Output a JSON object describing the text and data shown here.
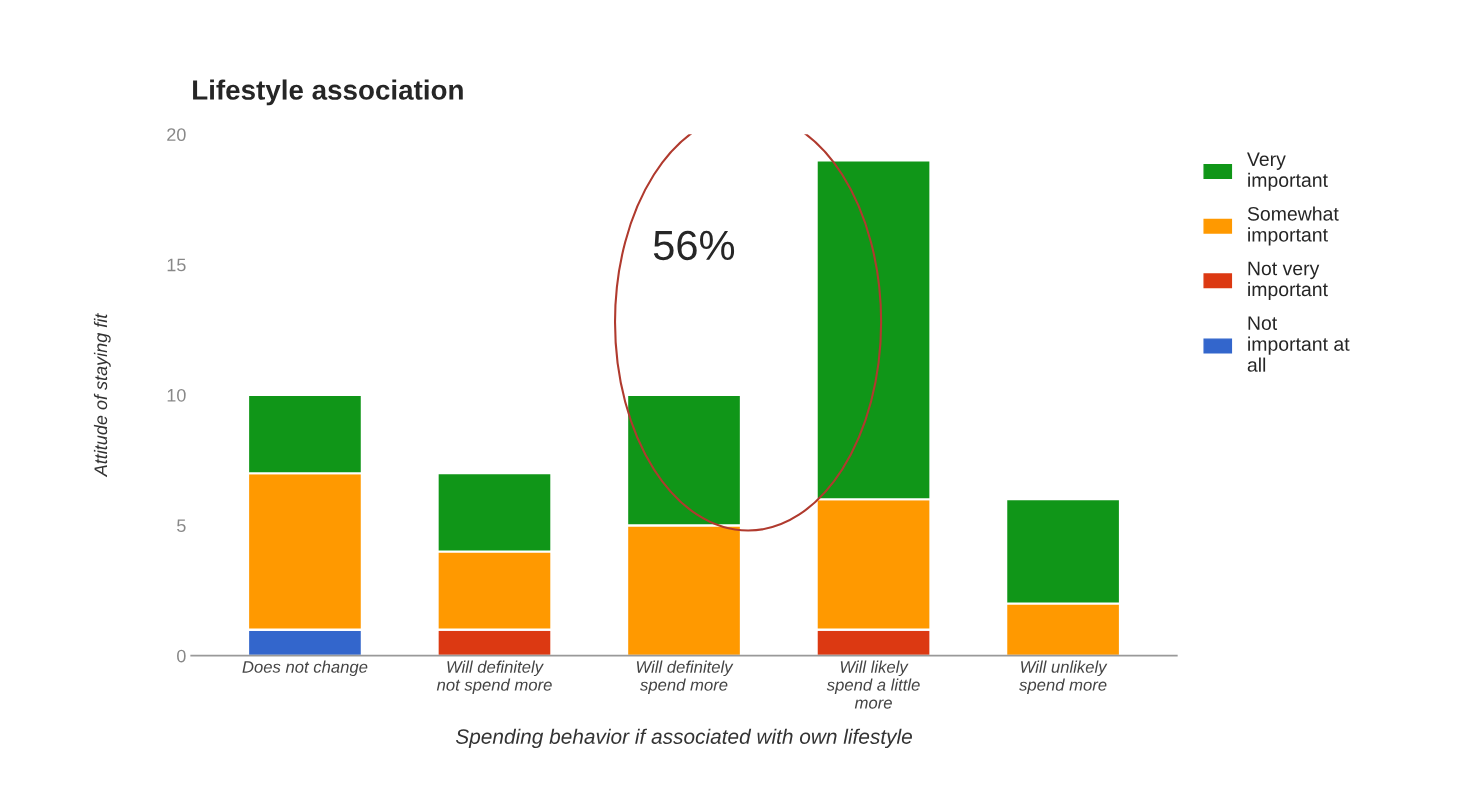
{
  "chart_data": {
    "type": "bar",
    "stacked": true,
    "title": "Lifestyle association",
    "xlabel": "Spending behavior if associated with own lifestyle",
    "ylabel": "Attitude of staying fit",
    "categories": [
      "Does not change",
      "Will definitely not spend more",
      "Will definitely spend more",
      "Will likely spend a little more",
      "Will unlikely spend more"
    ],
    "series": [
      {
        "name": "Not important at all",
        "color": "#3366cc",
        "values": [
          1,
          0,
          0,
          0,
          0
        ]
      },
      {
        "name": "Not very important",
        "color": "#dc3912",
        "values": [
          0,
          1,
          0,
          1,
          0
        ]
      },
      {
        "name": "Somewhat important",
        "color": "#ff9900",
        "values": [
          6,
          3,
          5,
          5,
          2
        ]
      },
      {
        "name": "Very important",
        "color": "#109618",
        "values": [
          3,
          3,
          5,
          13,
          4
        ]
      }
    ],
    "ylim": [
      0,
      20
    ],
    "yticks": [
      0,
      5,
      10,
      15,
      20
    ],
    "grid": false,
    "legend": "top right",
    "annotations": [
      "56%"
    ]
  }
}
